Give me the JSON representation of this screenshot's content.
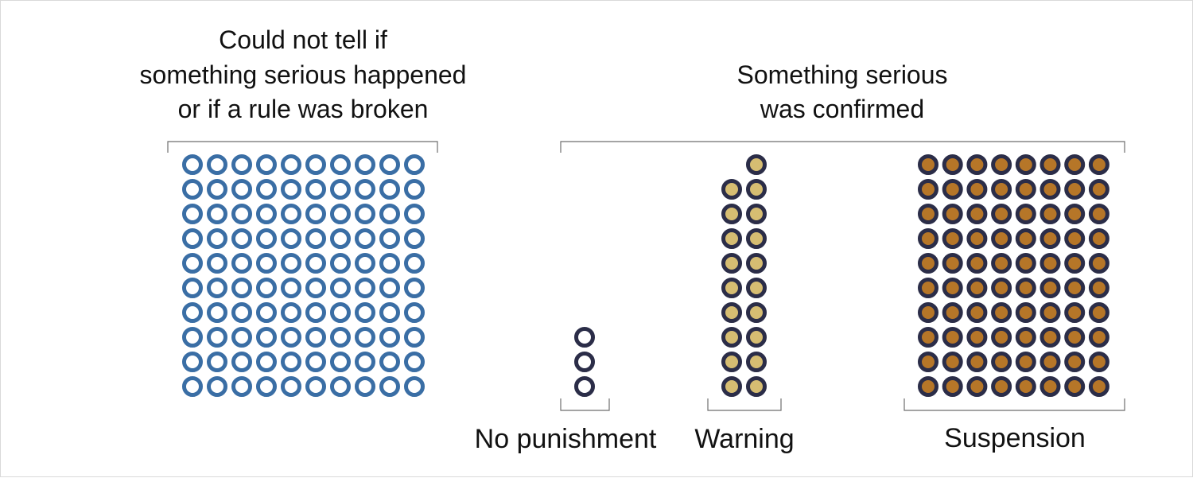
{
  "chart_data": {
    "type": "waffle",
    "groups": [
      {
        "heading": [
          "Could not tell if",
          "something serious happened",
          "or if a rule was broken"
        ],
        "categories": [
          {
            "label": "",
            "value": 100,
            "color": "#3a6ea5",
            "fill": "#ffffff"
          }
        ]
      },
      {
        "heading": [
          "Something serious",
          "was confirmed"
        ],
        "categories": [
          {
            "label": "No punishment",
            "value": 3,
            "color": "#2b2d48",
            "fill": "#ffffff"
          },
          {
            "label": "Warning",
            "value": 19,
            "color": "#2b2d48",
            "fill": "#d6bd72"
          },
          {
            "label": "Suspension",
            "value": 80,
            "color": "#2b2d48",
            "fill": "#b67628"
          }
        ]
      }
    ]
  }
}
